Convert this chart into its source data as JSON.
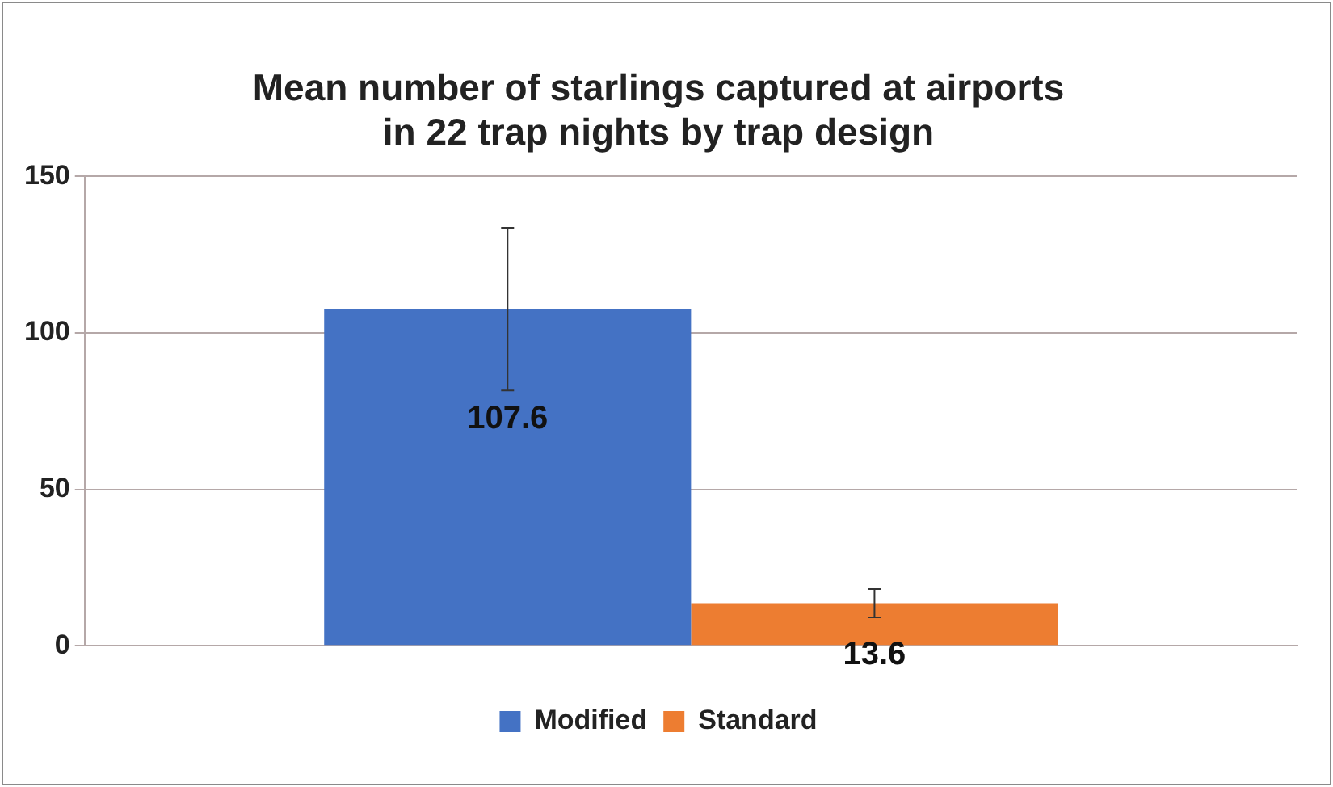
{
  "chart_data": {
    "type": "bar",
    "title": "Mean number of starlings captured at airports\nin 22 trap nights by trap design",
    "categories": [
      null
    ],
    "series": [
      {
        "name": "Modified",
        "color": "#4472c4",
        "values": [
          107.6
        ],
        "errors": [
          26
        ]
      },
      {
        "name": "Standard",
        "color": "#ed7d31",
        "values": [
          13.6
        ],
        "errors": [
          4.5
        ]
      }
    ],
    "ylim": [
      0,
      150
    ],
    "yticks": [
      0,
      50,
      100,
      150
    ],
    "grid": "y",
    "legend": "bottom",
    "data_labels": true
  }
}
